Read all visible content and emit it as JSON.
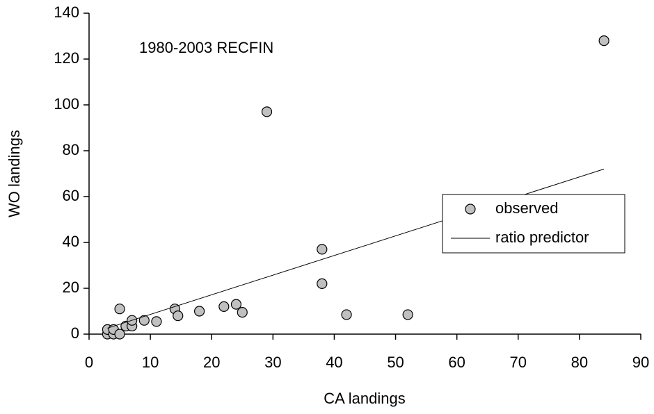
{
  "chart_data": {
    "type": "scatter",
    "annotation": "1980-2003 RECFIN",
    "x_label": "CA landings",
    "y_label": "WO landings",
    "xlim": [
      0,
      90
    ],
    "xticks": [
      0,
      10,
      20,
      30,
      40,
      50,
      60,
      70,
      80,
      90
    ],
    "ylim": [
      0,
      140
    ],
    "yticks": [
      0,
      20,
      40,
      60,
      80,
      100,
      120,
      140
    ],
    "grid": false,
    "legend_position": "right",
    "series": [
      {
        "name": "observed",
        "type": "scatter",
        "color": "#c0c0c0",
        "x": [
          3,
          3,
          4,
          4,
          5,
          5,
          6,
          7,
          7,
          9,
          11,
          14,
          14.5,
          18,
          22,
          24,
          25,
          29,
          38,
          38,
          42,
          52,
          84
        ],
        "values": [
          0,
          2,
          0,
          2,
          0,
          11,
          3.5,
          3.5,
          6,
          6,
          5.5,
          11,
          8,
          10,
          12,
          13,
          9.5,
          97,
          37,
          22,
          8.5,
          8.5,
          128
        ]
      },
      {
        "name": "ratio predictor",
        "type": "line",
        "color": "#000000",
        "x": [
          3,
          84
        ],
        "values": [
          2.6,
          72
        ]
      }
    ]
  }
}
